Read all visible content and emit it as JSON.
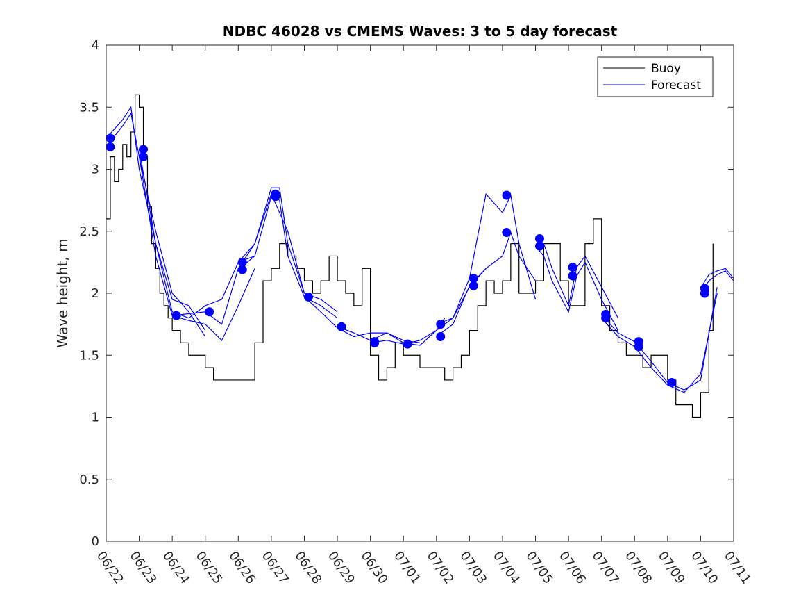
{
  "chart_data": {
    "type": "line",
    "title": "NDBC 46028 vs CMEMS Waves: 3 to 5 day forecast",
    "xlabel": "",
    "ylabel": "Wave height, m",
    "xlim": [
      "06/22",
      "07/11"
    ],
    "ylim": [
      0,
      4
    ],
    "x_tick_labels": [
      "06/22",
      "06/23",
      "06/24",
      "06/25",
      "06/26",
      "06/27",
      "06/28",
      "06/29",
      "06/30",
      "07/01",
      "07/02",
      "07/03",
      "07/04",
      "07/05",
      "07/06",
      "07/07",
      "07/08",
      "07/09",
      "07/10",
      "07/11"
    ],
    "y_ticks": [
      0,
      0.5,
      1,
      1.5,
      2,
      2.5,
      3,
      3.5,
      4
    ],
    "y_tick_labels": [
      "0",
      "0.5",
      "1",
      "1.5",
      "2",
      "2.5",
      "3",
      "3.5",
      "4"
    ],
    "grid": false,
    "legend": {
      "position": "top-right",
      "entries": [
        "Buoy",
        "Forecast"
      ]
    },
    "colors": {
      "buoy": "#000000",
      "forecast": "#0000ff"
    },
    "series": [
      {
        "name": "Buoy",
        "x": [
          "06/22 00:00",
          "06/22 03:00",
          "06/22 06:00",
          "06/22 09:00",
          "06/22 12:00",
          "06/22 15:00",
          "06/22 18:00",
          "06/22 21:00",
          "06/23 00:00",
          "06/23 03:00",
          "06/23 06:00",
          "06/23 09:00",
          "06/23 12:00",
          "06/23 15:00",
          "06/23 18:00",
          "06/23 21:00",
          "06/24 00:00",
          "06/24 06:00",
          "06/24 12:00",
          "06/24 18:00",
          "06/25 00:00",
          "06/25 06:00",
          "06/25 12:00",
          "06/25 18:00",
          "06/26 00:00",
          "06/26 06:00",
          "06/26 12:00",
          "06/26 18:00",
          "06/27 00:00",
          "06/27 06:00",
          "06/27 12:00",
          "06/27 18:00",
          "06/28 00:00",
          "06/28 06:00",
          "06/28 12:00",
          "06/28 18:00",
          "06/29 00:00",
          "06/29 06:00",
          "06/29 12:00",
          "06/29 18:00",
          "06/30 00:00",
          "06/30 06:00",
          "06/30 12:00",
          "06/30 18:00",
          "07/01 00:00",
          "07/01 06:00",
          "07/01 12:00",
          "07/01 18:00",
          "07/02 00:00",
          "07/02 06:00",
          "07/02 12:00",
          "07/02 18:00",
          "07/03 00:00",
          "07/03 06:00",
          "07/03 12:00",
          "07/03 18:00",
          "07/04 00:00",
          "07/04 06:00",
          "07/04 12:00",
          "07/04 18:00",
          "07/05 00:00",
          "07/05 06:00",
          "07/05 12:00",
          "07/05 18:00",
          "07/06 00:00",
          "07/06 06:00",
          "07/06 12:00",
          "07/06 18:00",
          "07/07 00:00",
          "07/07 06:00",
          "07/07 12:00",
          "07/07 18:00",
          "07/08 00:00",
          "07/08 06:00",
          "07/08 12:00",
          "07/08 18:00",
          "07/09 00:00",
          "07/09 06:00",
          "07/09 12:00",
          "07/09 18:00",
          "07/10 00:00",
          "07/10 06:00",
          "07/10 09:00"
        ],
        "values": [
          2.6,
          3.1,
          2.9,
          3.0,
          3.2,
          3.1,
          3.3,
          3.6,
          3.5,
          3.1,
          2.7,
          2.4,
          2.2,
          2.0,
          1.9,
          1.8,
          1.7,
          1.6,
          1.5,
          1.5,
          1.4,
          1.3,
          1.3,
          1.3,
          1.3,
          1.3,
          1.6,
          2.1,
          2.2,
          2.4,
          2.3,
          2.2,
          2.1,
          2.0,
          2.1,
          2.3,
          2.1,
          2.0,
          1.9,
          2.2,
          1.5,
          1.3,
          1.4,
          1.6,
          1.5,
          1.5,
          1.4,
          1.4,
          1.4,
          1.3,
          1.4,
          1.5,
          1.7,
          1.9,
          2.1,
          2.0,
          2.1,
          2.4,
          2.0,
          2.0,
          2.1,
          2.4,
          2.4,
          2.1,
          1.9,
          1.9,
          2.4,
          2.6,
          1.9,
          1.7,
          1.6,
          1.5,
          1.5,
          1.4,
          1.5,
          1.5,
          1.3,
          1.1,
          1.1,
          1.0,
          1.2,
          1.7,
          2.4
        ]
      },
      {
        "name": "Forecast",
        "runs": [
          {
            "x": [
              "06/22 00:00",
              "06/22 12:00",
              "06/22 18:00",
              "06/23 00:00",
              "06/23 12:00",
              "06/24 00:00",
              "06/24 12:00",
              "06/25 00:00"
            ],
            "values": [
              3.25,
              3.4,
              3.5,
              3.0,
              2.4,
              1.95,
              1.9,
              1.7
            ]
          },
          {
            "x": [
              "06/22 00:00",
              "06/22 12:00",
              "06/22 18:00",
              "06/23 00:00",
              "06/23 12:00",
              "06/24 00:00",
              "06/24 12:00",
              "06/25 00:00"
            ],
            "values": [
              3.18,
              3.35,
              3.45,
              3.1,
              2.5,
              2.0,
              1.85,
              1.65
            ]
          },
          {
            "x": [
              "06/23 00:00",
              "06/23 12:00",
              "06/24 00:00",
              "06/24 12:00",
              "06/25 00:00",
              "06/25 12:00",
              "06/26 00:00",
              "06/26 12:00"
            ],
            "values": [
              3.16,
              2.4,
              1.85,
              1.8,
              1.9,
              1.95,
              2.25,
              2.3
            ]
          },
          {
            "x": [
              "06/23 00:00",
              "06/23 12:00",
              "06/24 00:00",
              "06/24 12:00",
              "06/25 00:00",
              "06/25 12:00",
              "06/26 00:00",
              "06/26 12:00"
            ],
            "values": [
              3.1,
              2.3,
              1.82,
              1.78,
              1.75,
              1.62,
              1.9,
              2.2
            ]
          },
          {
            "x": [
              "06/24 00:00",
              "06/25 00:00",
              "06/25 12:00",
              "06/26 00:00",
              "06/26 12:00",
              "06/27 00:00",
              "06/27 12:00",
              "06/28 00:00"
            ],
            "values": [
              1.82,
              1.85,
              1.75,
              2.2,
              2.4,
              2.8,
              2.5,
              2.0
            ]
          },
          {
            "x": [
              "06/26 00:00",
              "06/26 12:00",
              "06/27 00:00",
              "06/27 06:00",
              "06/27 12:00",
              "06/28 00:00",
              "06/28 12:00",
              "06/29 00:00"
            ],
            "values": [
              2.25,
              2.4,
              2.85,
              2.85,
              2.4,
              2.0,
              1.95,
              1.85
            ]
          },
          {
            "x": [
              "06/26 00:00",
              "06/26 12:00",
              "06/27 00:00",
              "06/27 06:00",
              "06/27 12:00",
              "06/28 00:00",
              "06/28 12:00",
              "06/29 00:00"
            ],
            "values": [
              2.19,
              2.3,
              2.78,
              2.75,
              2.3,
              1.97,
              1.9,
              1.8
            ]
          },
          {
            "x": [
              "06/28 00:00",
              "06/28 12:00",
              "06/29 00:00",
              "06/29 12:00",
              "06/30 00:00",
              "06/30 12:00",
              "07/01 00:00",
              "07/01 12:00"
            ],
            "values": [
              1.97,
              1.85,
              1.72,
              1.65,
              1.68,
              1.68,
              1.62,
              1.6
            ]
          },
          {
            "x": [
              "06/29 00:00",
              "06/29 12:00",
              "06/30 00:00",
              "06/30 12:00",
              "07/01 00:00",
              "07/01 12:00",
              "07/02 00:00",
              "07/02 06:00"
            ],
            "values": [
              1.73,
              1.68,
              1.62,
              1.68,
              1.6,
              1.58,
              1.7,
              1.8
            ]
          },
          {
            "x": [
              "06/30 00:00",
              "06/30 12:00",
              "07/01 00:00",
              "07/01 12:00",
              "07/02 00:00",
              "07/02 12:00",
              "07/03 00:00",
              "07/03 12:00"
            ],
            "values": [
              1.6,
              1.62,
              1.59,
              1.62,
              1.7,
              1.8,
              2.05,
              2.2
            ]
          },
          {
            "x": [
              "07/02 00:00",
              "07/02 12:00",
              "07/03 00:00",
              "07/03 12:00",
              "07/04 00:00",
              "07/04 06:00",
              "07/04 12:00",
              "07/05 00:00"
            ],
            "values": [
              1.75,
              1.8,
              2.12,
              2.8,
              2.65,
              2.79,
              2.4,
              1.95
            ]
          },
          {
            "x": [
              "07/02 00:00",
              "07/02 12:00",
              "07/03 00:00",
              "07/03 12:00",
              "07/04 00:00",
              "07/04 06:00",
              "07/04 12:00",
              "07/05 00:00"
            ],
            "values": [
              1.65,
              1.75,
              2.06,
              2.2,
              2.3,
              2.49,
              2.3,
              2.1
            ]
          },
          {
            "x": [
              "07/05 00:00",
              "07/05 06:00",
              "07/05 12:00",
              "07/06 00:00",
              "07/06 06:00",
              "07/06 12:00",
              "07/07 00:00",
              "07/07 12:00"
            ],
            "values": [
              2.44,
              2.4,
              2.2,
              1.9,
              2.21,
              2.3,
              2.05,
              1.8
            ]
          },
          {
            "x": [
              "07/05 00:00",
              "07/05 06:00",
              "07/05 12:00",
              "07/06 00:00",
              "07/06 06:00",
              "07/06 12:00",
              "07/07 00:00",
              "07/07 12:00"
            ],
            "values": [
              2.38,
              2.3,
              2.1,
              1.85,
              2.14,
              2.25,
              1.95,
              1.7
            ]
          },
          {
            "x": [
              "07/07 00:00",
              "07/07 12:00",
              "07/08 00:00",
              "07/08 12:00",
              "07/09 00:00",
              "07/09 12:00",
              "07/10 00:00",
              "07/10 12:00"
            ],
            "values": [
              1.83,
              1.68,
              1.61,
              1.45,
              1.28,
              1.22,
              1.3,
              2.05
            ]
          },
          {
            "x": [
              "07/07 00:00",
              "07/07 12:00",
              "07/08 00:00",
              "07/08 12:00",
              "07/09 00:00",
              "07/09 12:00",
              "07/10 00:00",
              "07/10 12:00"
            ],
            "values": [
              1.8,
              1.65,
              1.57,
              1.4,
              1.26,
              1.2,
              1.35,
              2.0
            ]
          },
          {
            "x": [
              "07/10 00:00",
              "07/10 06:00",
              "07/10 12:00",
              "07/10 18:00",
              "07/11 00:00"
            ],
            "values": [
              2.04,
              2.15,
              2.18,
              2.2,
              2.12
            ]
          },
          {
            "x": [
              "07/10 00:00",
              "07/10 06:00",
              "07/10 12:00",
              "07/10 18:00",
              "07/11 00:00"
            ],
            "values": [
              2.0,
              2.1,
              2.15,
              2.18,
              2.1
            ]
          }
        ],
        "markers": {
          "x": [
            "06/22 03:00",
            "06/22 03:00",
            "06/23 03:00",
            "06/23 03:00",
            "06/24 03:00",
            "06/25 03:00",
            "06/26 03:00",
            "06/26 03:00",
            "06/27 03:00",
            "06/27 03:00",
            "06/28 03:00",
            "06/29 03:00",
            "06/30 03:00",
            "06/30 03:00",
            "07/01 03:00",
            "07/02 03:00",
            "07/02 03:00",
            "07/03 03:00",
            "07/03 03:00",
            "07/04 03:00",
            "07/04 03:00",
            "07/05 03:00",
            "07/05 03:00",
            "07/06 03:00",
            "07/06 03:00",
            "07/07 03:00",
            "07/07 03:00",
            "07/08 03:00",
            "07/08 03:00",
            "07/09 03:00",
            "07/10 03:00",
            "07/10 03:00"
          ],
          "values": [
            3.25,
            3.18,
            3.16,
            3.1,
            1.82,
            1.85,
            2.25,
            2.19,
            2.8,
            2.78,
            1.97,
            1.73,
            1.61,
            1.6,
            1.59,
            1.75,
            1.65,
            2.12,
            2.06,
            2.79,
            2.49,
            2.44,
            2.38,
            2.21,
            2.14,
            1.83,
            1.8,
            1.61,
            1.57,
            1.28,
            2.04,
            2.0
          ]
        }
      }
    ]
  }
}
